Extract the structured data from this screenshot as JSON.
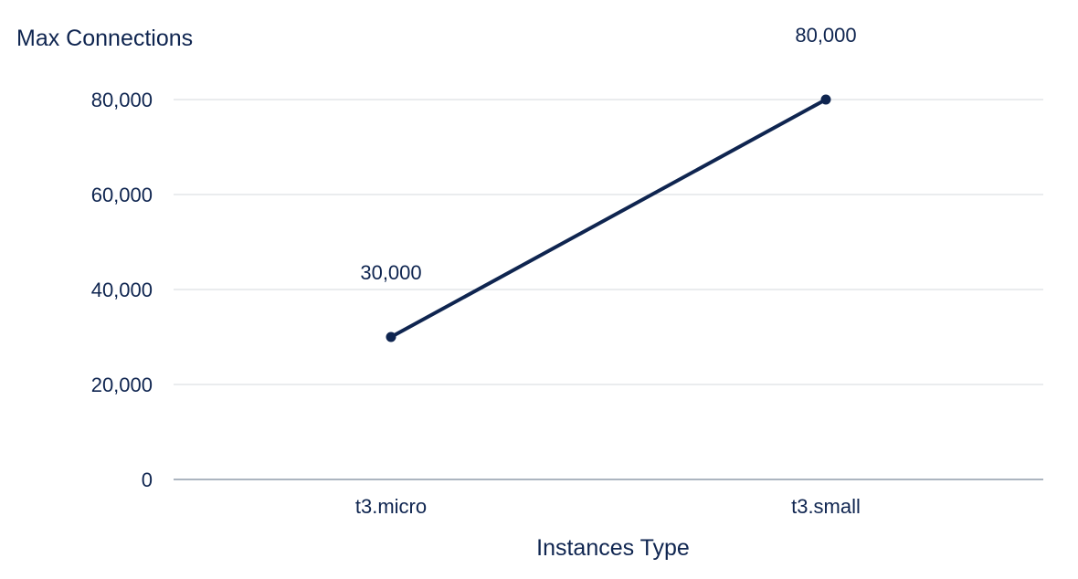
{
  "chart_data": {
    "type": "line",
    "title": "",
    "xlabel": "Instances Type",
    "ylabel": "Max Connections",
    "categories": [
      "t3.micro",
      "t3.small"
    ],
    "series": [
      {
        "values": [
          30000,
          80000
        ]
      }
    ],
    "data_labels": [
      "30,000",
      "80,000"
    ],
    "yticks": [
      0,
      20000,
      40000,
      60000,
      80000
    ],
    "ytick_labels": [
      "0",
      "20,000",
      "40,000",
      "60,000",
      "80,000"
    ],
    "ylim": [
      0,
      80000
    ],
    "grid": true,
    "legend": "none",
    "colors": {
      "line": "#0f2550",
      "grid": "#d5d9de",
      "axis": "#5a6b82",
      "text": "#0f2550"
    }
  }
}
